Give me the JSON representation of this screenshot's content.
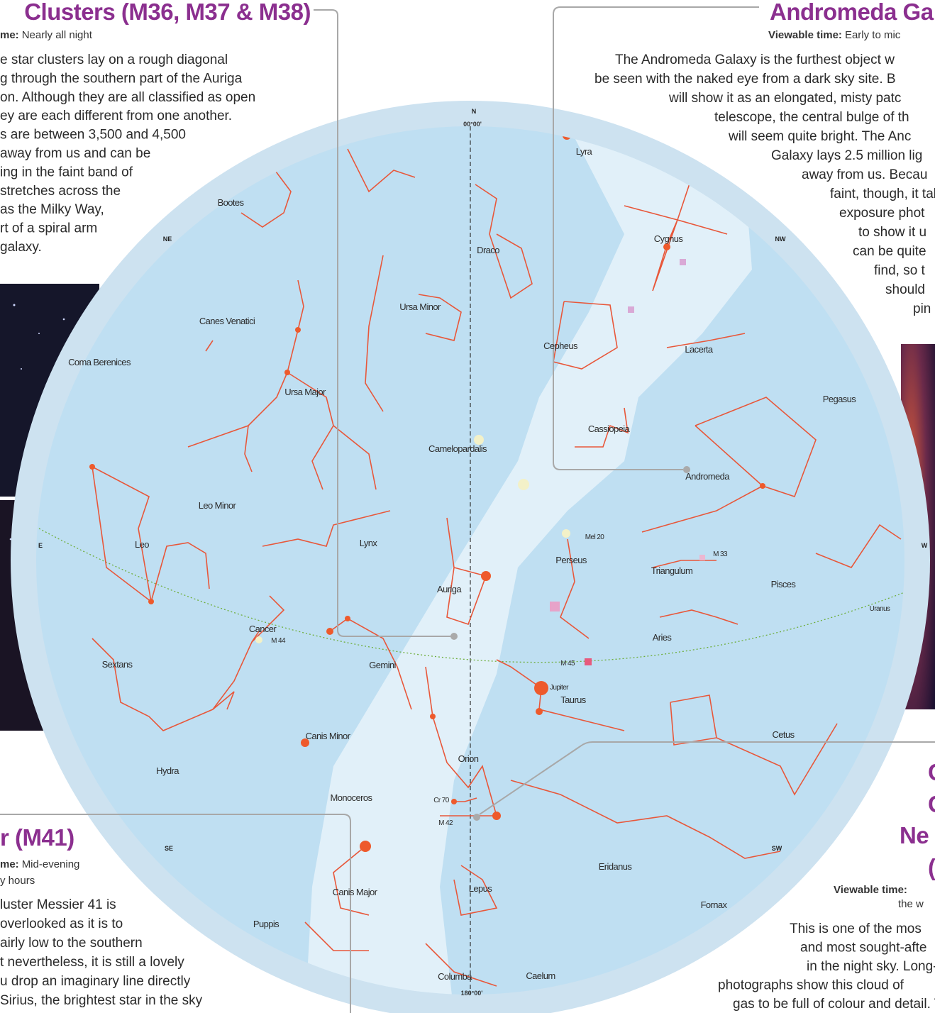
{
  "callouts": [
    {
      "title": [
        "Clusters (M36, M37 & M38)"
      ],
      "time_label": "me:",
      "time": [
        "Nearly all night"
      ],
      "text": [
        "e star clusters lay on a rough diagonal",
        "g through the southern part of the Auriga",
        "on. Although they are all classified as open",
        "ey are each different from one another.",
        "s are between 3,500 and 4,500",
        "away from us and can be",
        "ing in the faint band of",
        "stretches across the",
        "as the Milky Way,",
        "rt of a spiral arm",
        "galaxy."
      ]
    },
    {
      "title": [
        "Andromeda Ga"
      ],
      "time_label": "Viewable time:",
      "time": [
        "Early to mic"
      ],
      "text": [
        "The Andromeda Galaxy is the furthest object w",
        "be seen with the naked eye from a dark sky site. B",
        "will show it as an elongated, misty patc",
        "telescope, the central bulge of th",
        "will seem quite bright. The Anc",
        "Galaxy lays 2.5 million lig",
        "away from us. Becau",
        "faint, though, it tal",
        "exposure phot",
        "to show it u",
        "can be quite",
        "find, so t",
        "should",
        "pin"
      ]
    },
    {
      "title": [
        "r (M41)"
      ],
      "time_label": "me:",
      "time": [
        "Mid-evening",
        "y hours"
      ],
      "text": [
        "luster Messier 41 is",
        "overlooked as it is to",
        "airly low to the southern",
        "t nevertheless, it is still a lovely",
        "u drop an imaginary line directly",
        "Sirius, the brightest star in the sky"
      ]
    },
    {
      "title": [
        "C",
        "C",
        "Ne",
        "("
      ],
      "time_label": "Viewable time:",
      "time": [
        "the w"
      ],
      "text": [
        "This is one of the mos",
        "and most sought-afte",
        "in the night sky. Long-",
        "photographs show this cloud of",
        "gas to be full of colour and detail. T"
      ]
    }
  ],
  "map": {
    "compass": [
      "N",
      "NE",
      "NW",
      "E",
      "W",
      "SE",
      "SW"
    ],
    "coordinates": [
      "00°00'",
      "180°00'"
    ],
    "labels": [
      "Bootes",
      "Draco",
      "Ursa Minor",
      "Canes Venatici",
      "Coma Berenices",
      "Ursa Major",
      "Cepheus",
      "Cygnus",
      "Lyra",
      "Lacerta",
      "Cassiopeia",
      "Pegasus",
      "Camelopardalis",
      "Andromeda",
      "Leo Minor",
      "Leo",
      "Lynx",
      "Perseus",
      "Mel 20",
      "M 33",
      "Triangulum",
      "Pisces",
      "Uranus",
      "Auriga",
      "Cancer",
      "M 44",
      "Aries",
      "M 45",
      "Gemini",
      "Sextans",
      "Jupiter",
      "Taurus",
      "Cetus",
      "Canis Minor",
      "Hydra",
      "Orion",
      "Monoceros",
      "Cr 70",
      "M 42",
      "Eridanus",
      "Canis Major",
      "Lepus",
      "Fornax",
      "Puppis",
      "Columba",
      "Caelum"
    ]
  }
}
